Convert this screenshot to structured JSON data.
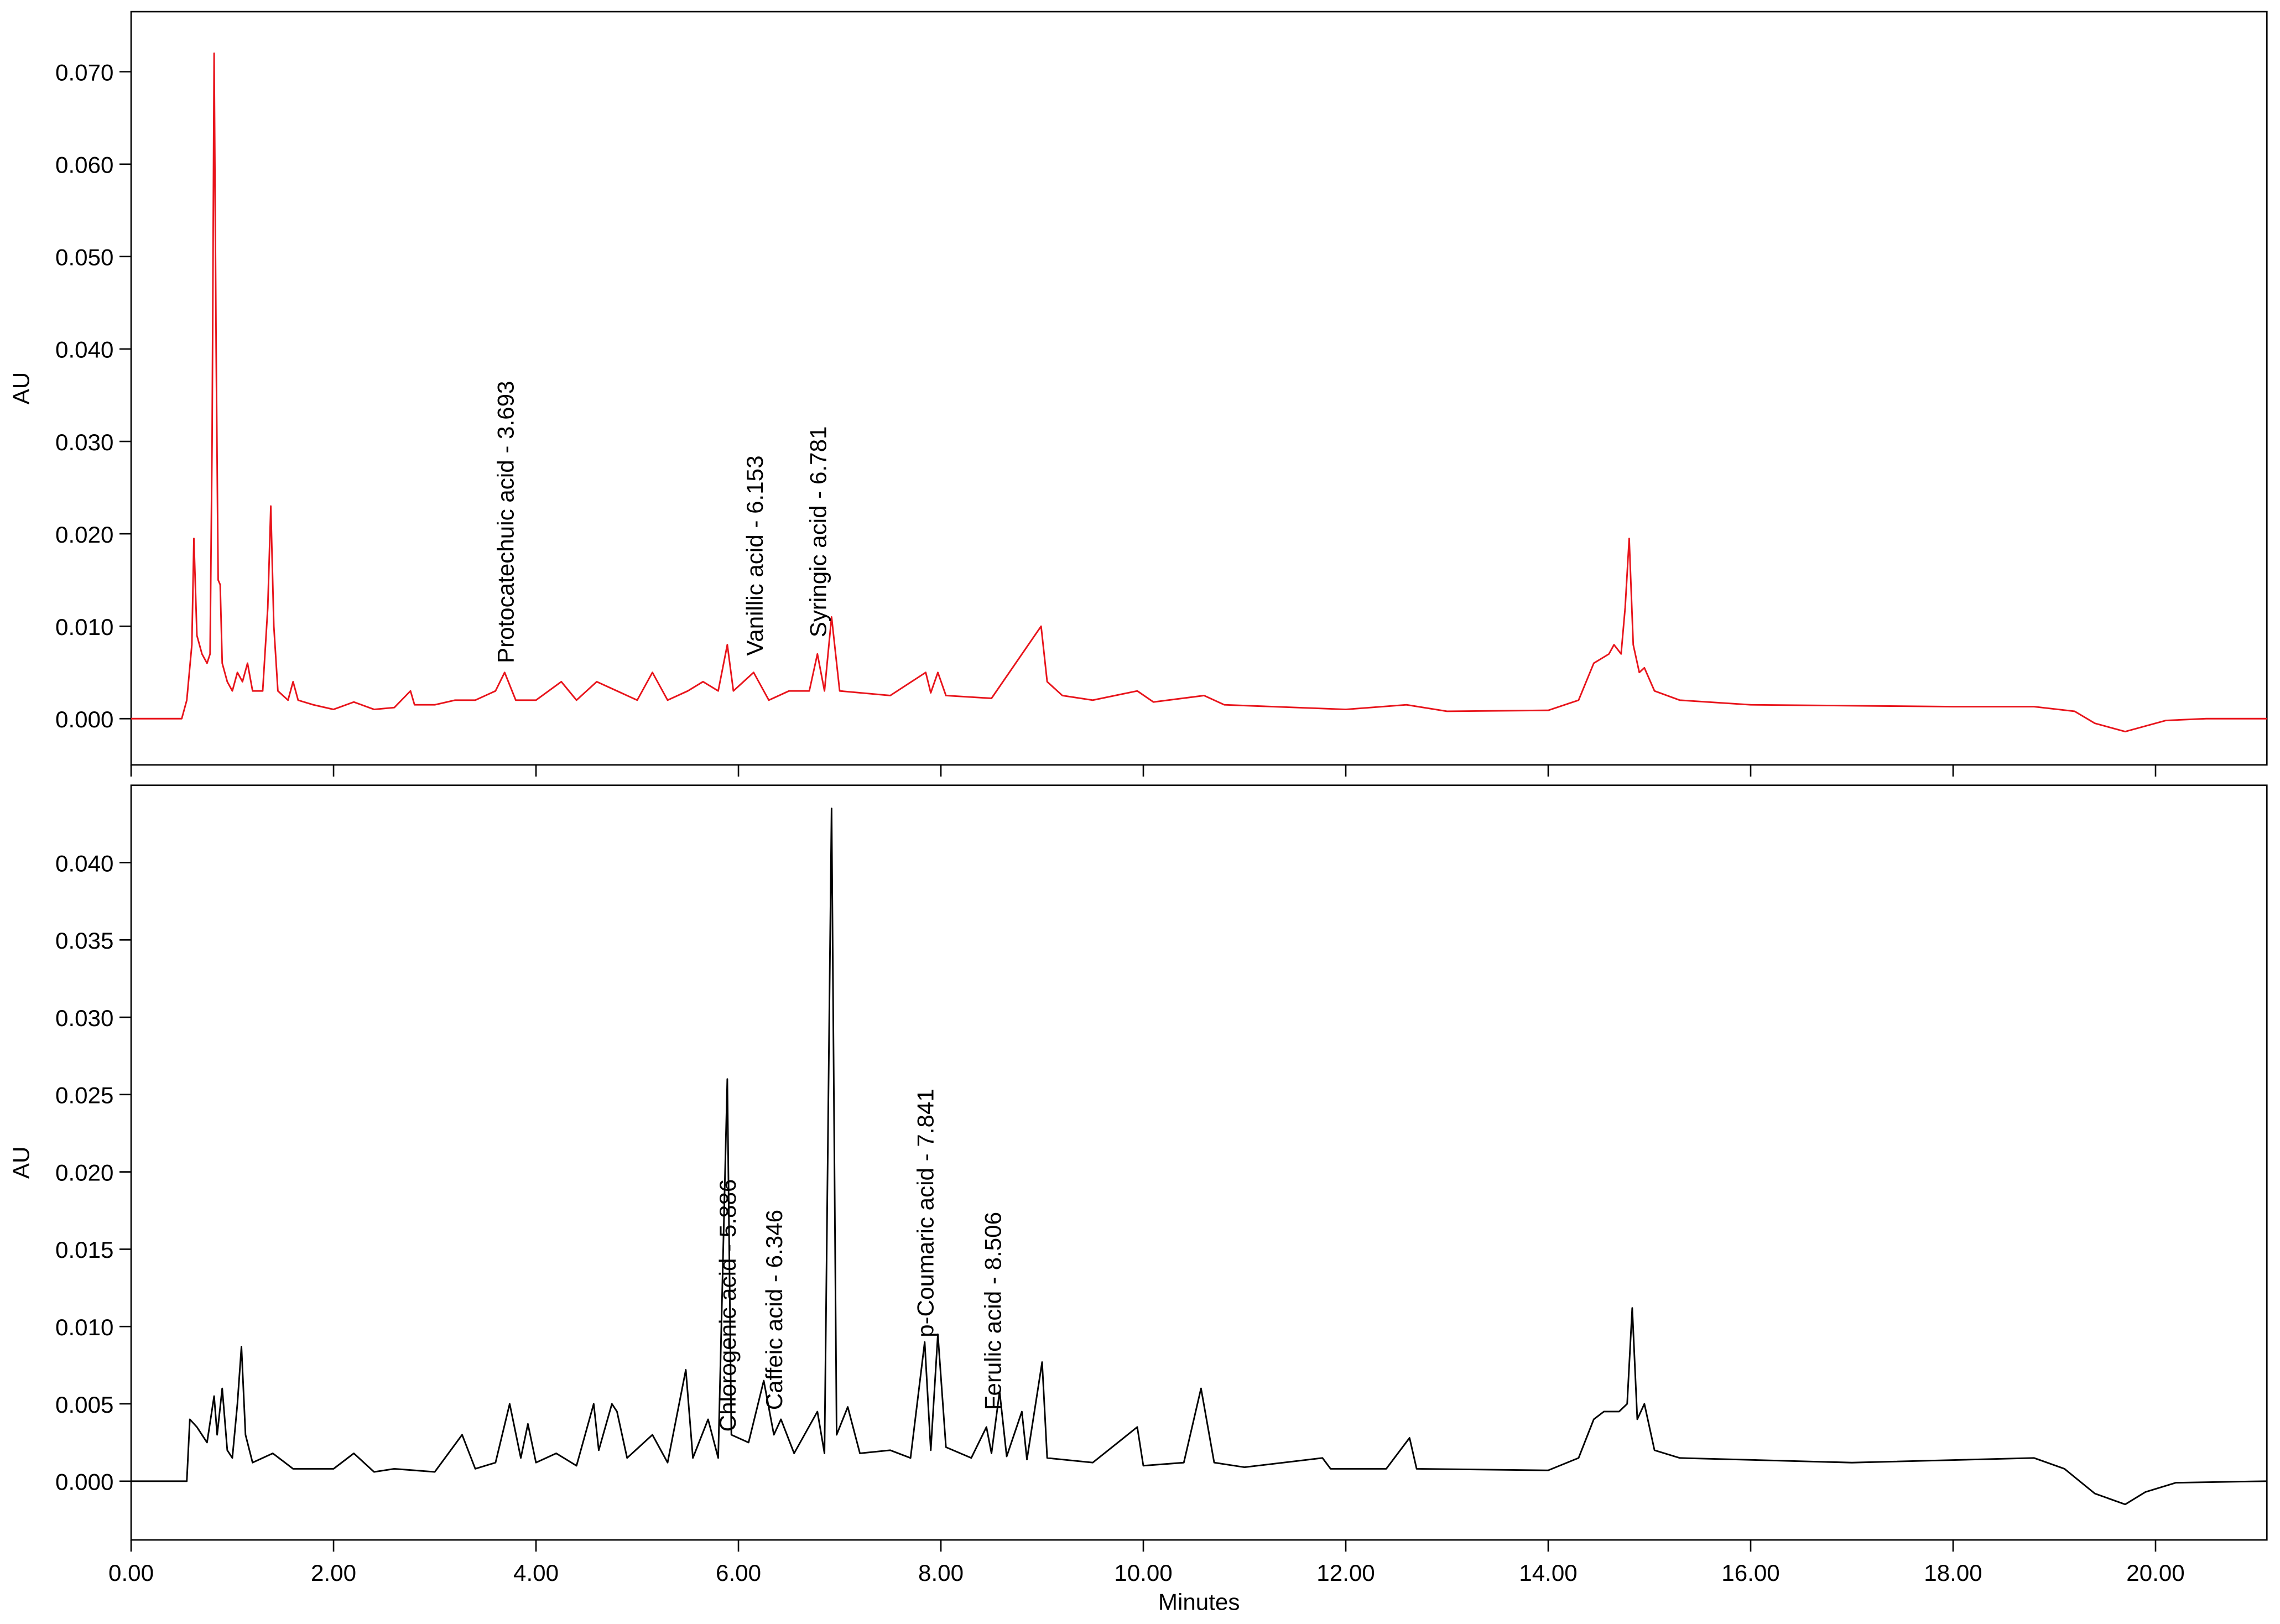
{
  "chart_data": [
    {
      "type": "line",
      "y_label": "AU",
      "color": "#e8141b",
      "xlim": [
        0,
        21.1
      ],
      "ylim": [
        -0.005,
        0.0765
      ],
      "yticks": [
        {
          "value": 0,
          "label": "0.000"
        },
        {
          "value": 0.01,
          "label": "0.010"
        },
        {
          "value": 0.02,
          "label": "0.020"
        },
        {
          "value": 0.03,
          "label": "0.030"
        },
        {
          "value": 0.04,
          "label": "0.040"
        },
        {
          "value": 0.05,
          "label": "0.050"
        },
        {
          "value": 0.06,
          "label": "0.060"
        },
        {
          "value": 0.07,
          "label": "0.070"
        }
      ],
      "x": [
        0,
        0.5,
        0.55,
        0.6,
        0.62,
        0.65,
        0.7,
        0.75,
        0.78,
        0.8,
        0.82,
        0.84,
        0.86,
        0.88,
        0.9,
        0.95,
        1.0,
        1.05,
        1.1,
        1.15,
        1.2,
        1.3,
        1.35,
        1.38,
        1.41,
        1.45,
        1.55,
        1.6,
        1.65,
        1.8,
        2.0,
        2.2,
        2.4,
        2.6,
        2.76,
        2.8,
        3.0,
        3.2,
        3.4,
        3.6,
        3.69,
        3.8,
        4.0,
        4.25,
        4.4,
        4.6,
        4.8,
        5.0,
        5.15,
        5.3,
        5.5,
        5.65,
        5.8,
        5.89,
        5.95,
        6.15,
        6.3,
        6.5,
        6.7,
        6.78,
        6.85,
        6.92,
        7.0,
        7.5,
        7.85,
        7.9,
        7.97,
        8.05,
        8.5,
        8.99,
        9.05,
        9.2,
        9.5,
        9.94,
        10.1,
        10.6,
        10.8,
        12.0,
        12.6,
        13.0,
        14.0,
        14.3,
        14.45,
        14.6,
        14.65,
        14.72,
        14.76,
        14.8,
        14.84,
        14.9,
        14.95,
        15.05,
        15.3,
        16.0,
        18.0,
        18.8,
        19.2,
        19.4,
        19.7,
        19.9,
        20.1,
        20.5,
        21.1
      ],
      "values": [
        0,
        0,
        0.002,
        0.008,
        0.0195,
        0.009,
        0.007,
        0.006,
        0.007,
        0.03,
        0.072,
        0.04,
        0.015,
        0.0145,
        0.006,
        0.004,
        0.003,
        0.005,
        0.004,
        0.006,
        0.003,
        0.003,
        0.012,
        0.023,
        0.01,
        0.003,
        0.002,
        0.004,
        0.002,
        0.0015,
        0.001,
        0.0018,
        0.001,
        0.0012,
        0.003,
        0.0015,
        0.0015,
        0.002,
        0.002,
        0.003,
        0.005,
        0.002,
        0.002,
        0.004,
        0.002,
        0.004,
        0.003,
        0.002,
        0.005,
        0.002,
        0.003,
        0.004,
        0.003,
        0.008,
        0.003,
        0.005,
        0.002,
        0.003,
        0.003,
        0.007,
        0.003,
        0.011,
        0.003,
        0.0025,
        0.005,
        0.0028,
        0.005,
        0.0025,
        0.0022,
        0.01,
        0.004,
        0.0025,
        0.002,
        0.003,
        0.0018,
        0.0025,
        0.0015,
        0.001,
        0.0015,
        0.0008,
        0.0009,
        0.002,
        0.006,
        0.007,
        0.008,
        0.007,
        0.012,
        0.0195,
        0.008,
        0.005,
        0.0055,
        0.003,
        0.002,
        0.0015,
        0.0013,
        0.0013,
        0.0008,
        -0.0005,
        -0.0014,
        -0.0008,
        -0.0002,
        0,
        0
      ],
      "annotations": [
        {
          "text": "Protocatechuic acid - 3.693",
          "x": 3.693,
          "y": 0.006
        },
        {
          "text": "Vanillic acid - 6.153",
          "x": 6.153,
          "y": 0.0068
        },
        {
          "text": "Syringic acid - 6.781",
          "x": 6.781,
          "y": 0.0088
        }
      ]
    },
    {
      "type": "line",
      "y_label": "AU",
      "x_label": "Minutes",
      "color": "#000000",
      "xlim": [
        0,
        21.1
      ],
      "ylim": [
        -0.0038,
        0.045
      ],
      "xticks": [
        {
          "value": 0,
          "label": "0.00"
        },
        {
          "value": 2,
          "label": "2.00"
        },
        {
          "value": 4,
          "label": "4.00"
        },
        {
          "value": 6,
          "label": "6.00"
        },
        {
          "value": 8,
          "label": "8.00"
        },
        {
          "value": 10,
          "label": "10.00"
        },
        {
          "value": 12,
          "label": "12.00"
        },
        {
          "value": 14,
          "label": "14.00"
        },
        {
          "value": 16,
          "label": "16.00"
        },
        {
          "value": 18,
          "label": "18.00"
        },
        {
          "value": 20,
          "label": "20.00"
        }
      ],
      "yticks": [
        {
          "value": 0,
          "label": "0.000"
        },
        {
          "value": 0.005,
          "label": "0.005"
        },
        {
          "value": 0.01,
          "label": "0.010"
        },
        {
          "value": 0.015,
          "label": "0.015"
        },
        {
          "value": 0.02,
          "label": "0.020"
        },
        {
          "value": 0.025,
          "label": "0.025"
        },
        {
          "value": 0.03,
          "label": "0.030"
        },
        {
          "value": 0.035,
          "label": "0.035"
        },
        {
          "value": 0.04,
          "label": "0.040"
        }
      ],
      "x": [
        0,
        0.55,
        0.58,
        0.65,
        0.75,
        0.82,
        0.85,
        0.9,
        0.95,
        1.0,
        1.05,
        1.09,
        1.13,
        1.2,
        1.4,
        1.6,
        2.0,
        2.2,
        2.4,
        2.6,
        3.0,
        3.27,
        3.4,
        3.6,
        3.74,
        3.85,
        3.92,
        4.0,
        4.2,
        4.4,
        4.57,
        4.62,
        4.75,
        4.8,
        4.9,
        5.15,
        5.3,
        5.48,
        5.55,
        5.7,
        5.8,
        5.89,
        5.93,
        6.1,
        6.25,
        6.35,
        6.42,
        6.55,
        6.78,
        6.85,
        6.92,
        6.97,
        7.08,
        7.2,
        7.5,
        7.7,
        7.84,
        7.9,
        7.97,
        8.05,
        8.3,
        8.45,
        8.5,
        8.58,
        8.65,
        8.8,
        8.85,
        9.0,
        9.05,
        9.5,
        9.94,
        10.0,
        10.4,
        10.57,
        10.7,
        11.0,
        11.77,
        11.85,
        12.4,
        12.63,
        12.7,
        14.0,
        14.3,
        14.45,
        14.55,
        14.7,
        14.78,
        14.83,
        14.88,
        14.95,
        15.05,
        15.3,
        17.0,
        18.8,
        19.1,
        19.4,
        19.7,
        19.9,
        20.2,
        21.1
      ],
      "values": [
        0,
        0,
        0.004,
        0.0035,
        0.0025,
        0.0055,
        0.003,
        0.006,
        0.002,
        0.0015,
        0.005,
        0.0087,
        0.003,
        0.0012,
        0.0018,
        0.0008,
        0.0008,
        0.0018,
        0.0006,
        0.0008,
        0.0006,
        0.003,
        0.0008,
        0.0012,
        0.005,
        0.0015,
        0.0037,
        0.0012,
        0.0018,
        0.001,
        0.005,
        0.002,
        0.005,
        0.0045,
        0.0015,
        0.003,
        0.0012,
        0.0072,
        0.0015,
        0.004,
        0.0015,
        0.026,
        0.003,
        0.0025,
        0.0065,
        0.003,
        0.004,
        0.0018,
        0.0045,
        0.0018,
        0.0435,
        0.003,
        0.0048,
        0.0018,
        0.002,
        0.0015,
        0.009,
        0.002,
        0.0095,
        0.0022,
        0.0015,
        0.0035,
        0.0018,
        0.0058,
        0.0016,
        0.0045,
        0.0014,
        0.0077,
        0.0015,
        0.0012,
        0.0035,
        0.001,
        0.0012,
        0.006,
        0.0012,
        0.0009,
        0.0015,
        0.0008,
        0.0008,
        0.0028,
        0.0008,
        0.0007,
        0.0015,
        0.004,
        0.0045,
        0.0045,
        0.005,
        0.0112,
        0.004,
        0.005,
        0.002,
        0.0015,
        0.0012,
        0.0015,
        0.0008,
        -0.0008,
        -0.0015,
        -0.0007,
        -0.0001,
        0
      ],
      "annotations": [
        {
          "text": "Chlorogenic acid - 5.886",
          "x": 5.886,
          "y": 0.0032
        },
        {
          "text": "Caffeic acid - 6.346",
          "x": 6.346,
          "y": 0.0046
        },
        {
          "text": "p-Coumaric acid - 7.841",
          "x": 7.841,
          "y": 0.0093
        },
        {
          "text": "Ferulic acid - 8.506",
          "x": 8.506,
          "y": 0.0046
        }
      ]
    }
  ]
}
